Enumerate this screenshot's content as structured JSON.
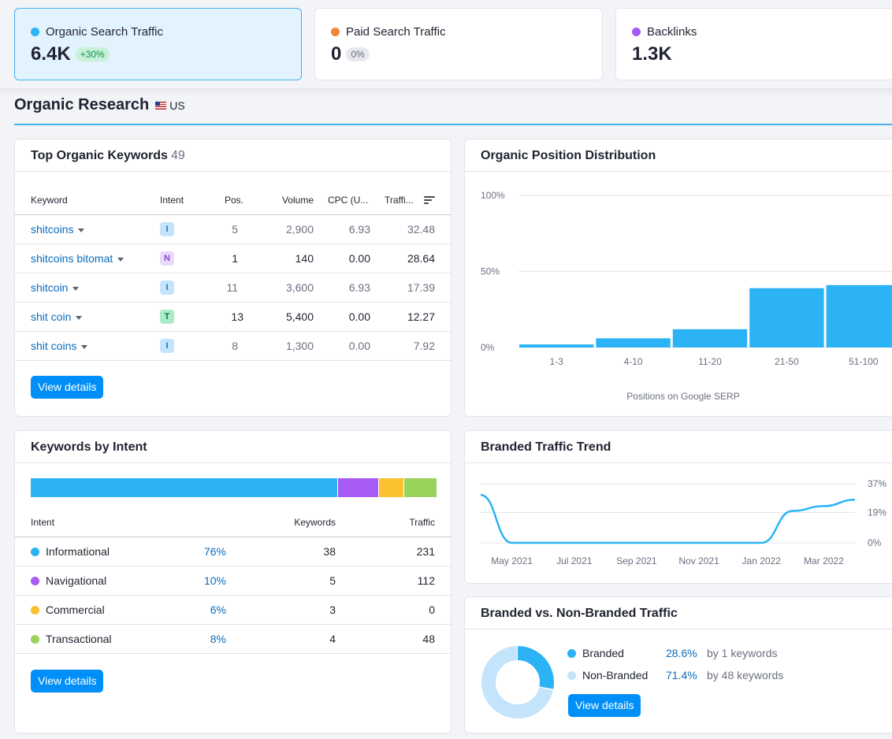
{
  "metrics": [
    {
      "label": "Organic Search Traffic",
      "value": "6.4K",
      "badge": "+30%",
      "dot_color": "#2bb3f5"
    },
    {
      "label": "Paid Search Traffic",
      "value": "0",
      "badge": "0%",
      "dot_color": "#f5843a"
    },
    {
      "label": "Backlinks",
      "value": "1.3K",
      "dot_color": "#a65bf2"
    }
  ],
  "section": {
    "title": "Organic Research",
    "country": "US"
  },
  "top_keywords": {
    "title": "Top Organic Keywords",
    "count": "49",
    "columns": [
      "Keyword",
      "Intent",
      "Pos.",
      "Volume",
      "CPC (U...",
      "Traffi..."
    ],
    "rows": [
      {
        "keyword": "shitcoins",
        "intent": "I",
        "pos": "5",
        "volume": "2,900",
        "cpc": "6.93",
        "traffic": "32.48"
      },
      {
        "keyword": "shitcoins bitomat",
        "intent": "N",
        "pos": "1",
        "volume": "140",
        "cpc": "0.00",
        "traffic": "28.64"
      },
      {
        "keyword": "shitcoin",
        "intent": "I",
        "pos": "11",
        "volume": "3,600",
        "cpc": "6.93",
        "traffic": "17.39"
      },
      {
        "keyword": "shit coin",
        "intent": "T",
        "pos": "13",
        "volume": "5,400",
        "cpc": "0.00",
        "traffic": "12.27"
      },
      {
        "keyword": "shit coins",
        "intent": "I",
        "pos": "8",
        "volume": "1,300",
        "cpc": "0.00",
        "traffic": "7.92"
      }
    ],
    "button": "View details"
  },
  "position_distribution": {
    "title": "Organic Position Distribution",
    "chart_data": {
      "type": "bar",
      "categories": [
        "1-3",
        "4-10",
        "11-20",
        "21-50",
        "51-100"
      ],
      "values": [
        2,
        6,
        12,
        39,
        41
      ],
      "ylim": [
        0,
        100
      ],
      "yticks": [
        "0%",
        "50%",
        "100%"
      ],
      "xlabel": "Positions on Google SERP",
      "color": "#2bb3f5"
    }
  },
  "keywords_by_intent": {
    "title": "Keywords by Intent",
    "columns": [
      "Intent",
      "Keywords",
      "Traffic"
    ],
    "rows": [
      {
        "intent": "Informational",
        "pct": "76%",
        "keywords": "38",
        "traffic": "231",
        "color": "#2bb3f5",
        "share": 76
      },
      {
        "intent": "Navigational",
        "pct": "10%",
        "keywords": "5",
        "traffic": "112",
        "color": "#a65bf2",
        "share": 10
      },
      {
        "intent": "Commercial",
        "pct": "6%",
        "keywords": "3",
        "traffic": "0",
        "color": "#fbc131",
        "share": 6
      },
      {
        "intent": "Transactional",
        "pct": "8%",
        "keywords": "4",
        "traffic": "48",
        "color": "#9ad35c",
        "share": 8
      }
    ],
    "button": "View details"
  },
  "branded_trend": {
    "title": "Branded Traffic Trend",
    "chart_data": {
      "type": "line",
      "x": [
        "Apr 2021",
        "May 2021",
        "Jun 2021",
        "Jul 2021",
        "Aug 2021",
        "Sep 2021",
        "Oct 2021",
        "Nov 2021",
        "Dec 2021",
        "Jan 2022",
        "Feb 2022",
        "Mar 2022",
        "Apr 2022"
      ],
      "values": [
        30,
        0,
        0,
        0,
        0,
        0,
        0,
        0,
        0,
        0,
        20,
        23,
        27
      ],
      "xticks": [
        "May 2021",
        "Jul 2021",
        "Sep 2021",
        "Nov 2021",
        "Jan 2022",
        "Mar 2022"
      ],
      "yticks": [
        "0%",
        "19%",
        "37%"
      ],
      "ylim": [
        0,
        37
      ],
      "color": "#2bb3f5"
    }
  },
  "branded_vs_non": {
    "title": "Branded vs. Non-Branded Traffic",
    "chart_data": {
      "type": "pie",
      "categories": [
        "Branded",
        "Non-Branded"
      ],
      "values": [
        28.6,
        71.4
      ],
      "colors": [
        "#2bb3f5",
        "#c4e4fc"
      ]
    },
    "rows": [
      {
        "label": "Branded",
        "pct": "28.6%",
        "by": "by 1 keywords",
        "color": "#2bb3f5"
      },
      {
        "label": "Non-Branded",
        "pct": "71.4%",
        "by": "by 48 keywords",
        "color": "#c4e4fc"
      }
    ],
    "button": "View details"
  }
}
